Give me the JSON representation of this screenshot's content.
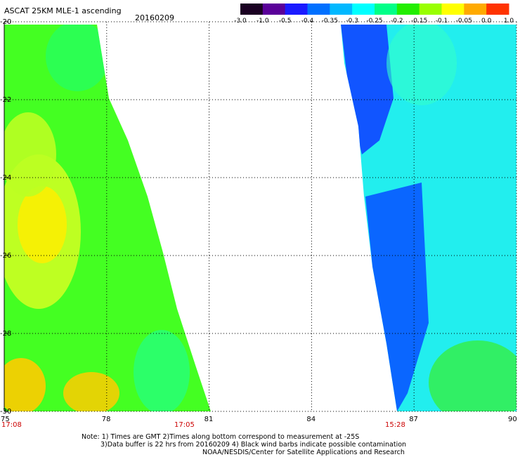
{
  "header": {
    "title": "ASCAT 25KM MLE-1 ascending",
    "date": "20160209"
  },
  "colorbar": {
    "labels": [
      "-3.0",
      "-1.0",
      "-0.5",
      "-0.4",
      "-0.35",
      "-0.3",
      "-0.25",
      "-0.2",
      "-0.15",
      "-0.1",
      "-0.05",
      "0.0",
      "1.0"
    ],
    "colors": [
      "#1a0022",
      "#5a0099",
      "#1a1aff",
      "#0070ff",
      "#00b8ff",
      "#00ffff",
      "#00ff88",
      "#22ee00",
      "#99ff00",
      "#ffff00",
      "#ffaa00",
      "#ff3300"
    ]
  },
  "map": {
    "lon_labels": [
      "75",
      "78",
      "81",
      "84",
      "87",
      "90"
    ],
    "lat_labels": [
      "-20",
      "-22",
      "-24",
      "-26",
      "-28",
      "-30"
    ],
    "lon_range": [
      75,
      90
    ],
    "lat_range": [
      -20,
      -30
    ],
    "pass_times": [
      "17:08",
      "17:05",
      "15:28"
    ],
    "grid": true
  },
  "notes": {
    "line1": "Note: 1) Times are GMT 2)Times along bottom correspond to measurement at -25S",
    "line2": "3)Data buffer is 22 hrs from 20160209 4) Black wind barbs indicate possible contamination",
    "line3": "NOAA/NESDIS/Center for Satellite Applications and Research"
  }
}
